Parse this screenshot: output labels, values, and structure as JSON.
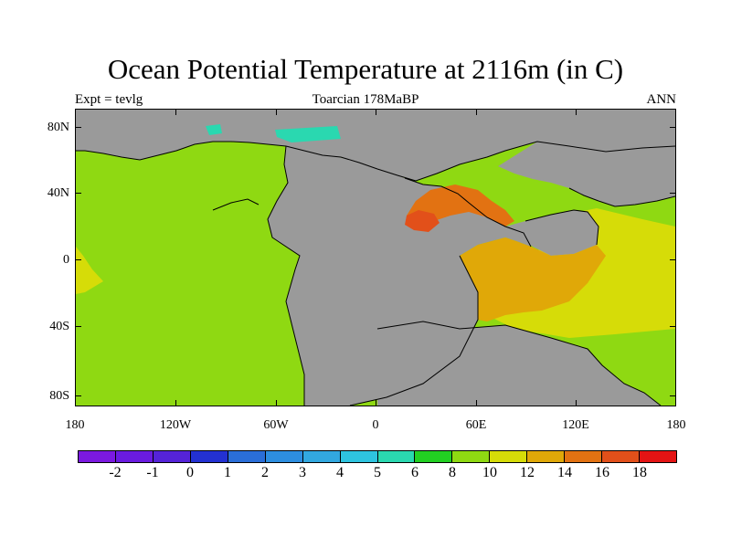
{
  "header": {
    "title": "Ocean Potential Temperature at 2116m (in C)",
    "experiment": "Expt = tevlg",
    "period": "Toarcian 178MaBP",
    "season": "ANN"
  },
  "axes": {
    "lat_labels": [
      "80N",
      "40N",
      "0",
      "40S",
      "80S"
    ],
    "lon_labels": [
      "180",
      "120W",
      "60W",
      "0",
      "60E",
      "120E",
      "180"
    ]
  },
  "colorbar": {
    "colors": [
      "#7b19e0",
      "#6a1be0",
      "#5523d8",
      "#2331d2",
      "#2a6ed8",
      "#2d8ee0",
      "#32a8e0",
      "#2ec4e0",
      "#2ad8b0",
      "#22d022",
      "#8fd912",
      "#d6dc08",
      "#e0a808",
      "#e27212",
      "#e2501a",
      "#e41414"
    ],
    "labels": [
      "-2",
      "-1",
      "0",
      "1",
      "2",
      "3",
      "4",
      "5",
      "6",
      "8",
      "10",
      "12",
      "14",
      "16",
      "18"
    ]
  },
  "map": {
    "land_color": "#9a9a9a",
    "regions": [
      {
        "name": "ocean-base",
        "level": "10",
        "color": "#8fd912"
      },
      {
        "name": "eastern-tethys-warm-band",
        "level": "12",
        "color": "#d6dc08"
      },
      {
        "name": "tethys-warm-pool",
        "level": "14",
        "color": "#e0a808"
      },
      {
        "name": "tethys-inner-warm-zone",
        "level": "16",
        "color": "#e27212"
      },
      {
        "name": "tethys-hot-spot",
        "level": "18",
        "color": "#e2501a"
      },
      {
        "name": "arctic-cool-patch",
        "level": "6",
        "color": "#2ad8b0"
      }
    ]
  }
}
